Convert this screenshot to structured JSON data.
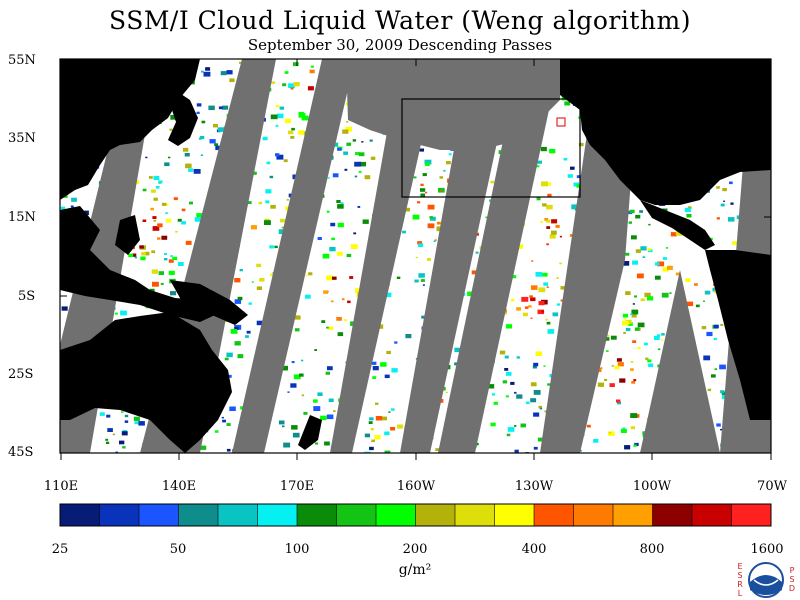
{
  "title": "SSM/I Cloud Liquid Water (Weng algorithm)",
  "subtitle": "September 30, 2009  Descending Passes",
  "latitude_labels": [
    "55N",
    "35N",
    "15N",
    "5S",
    "25S",
    "45S"
  ],
  "longitude_labels": [
    "110E",
    "140E",
    "170E",
    "160W",
    "130W",
    "100W",
    "70W"
  ],
  "colorbar": {
    "colors": [
      "#061c76",
      "#0a33bb",
      "#1a55ff",
      "#0f8c8c",
      "#0ac4c4",
      "#05f0f0",
      "#0a8c0a",
      "#14c414",
      "#00ff00",
      "#b2b20a",
      "#dede0a",
      "#ffff00",
      "#ff5500",
      "#ff7a00",
      "#ffa000",
      "#8c0000",
      "#c80000",
      "#ff2020"
    ],
    "tick_labels": [
      "25",
      "50",
      "100",
      "200",
      "400",
      "800",
      "1600"
    ],
    "units": "g/m²"
  },
  "colors": {
    "swath_gap": "#707070",
    "land": "#000000",
    "ocean_clear": "#ffffff"
  },
  "logo": {
    "left_text": "ESRL",
    "right_text": "PSD",
    "center_text": "NOAA"
  }
}
